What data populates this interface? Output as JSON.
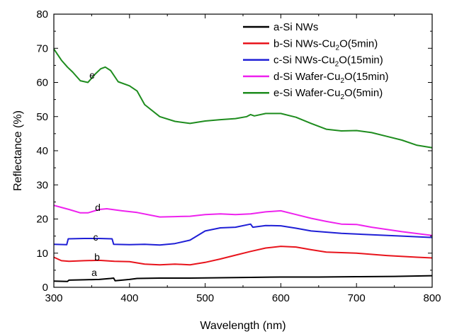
{
  "chart_data": {
    "type": "line",
    "xlabel": "Wavelength (nm)",
    "ylabel": "Reflectance (%)",
    "xlim": [
      300,
      800
    ],
    "ylim": [
      0,
      80
    ],
    "xticks": [
      "300",
      "400",
      "500",
      "600",
      "700",
      "800"
    ],
    "yticks": [
      "0",
      "10",
      "20",
      "30",
      "40",
      "50",
      "60",
      "70",
      "80"
    ],
    "grid": false,
    "legend_position": "top-right",
    "series": [
      {
        "name": "a-Si NWs",
        "legend_pre": "a-Si NWs",
        "legend_sub": "",
        "legend_post": "",
        "label": "a",
        "color": "#000000",
        "points": [
          [
            300,
            1.8
          ],
          [
            318,
            1.7
          ],
          [
            320,
            2.1
          ],
          [
            340,
            2.2
          ],
          [
            360,
            2.3
          ],
          [
            375,
            2.6
          ],
          [
            379,
            2.7
          ],
          [
            381,
            1.9
          ],
          [
            390,
            2.1
          ],
          [
            400,
            2.3
          ],
          [
            410,
            2.6
          ],
          [
            440,
            2.7
          ],
          [
            480,
            2.7
          ],
          [
            520,
            2.8
          ],
          [
            560,
            2.9
          ],
          [
            600,
            3.0
          ],
          [
            650,
            3.0
          ],
          [
            700,
            3.1
          ],
          [
            750,
            3.2
          ],
          [
            800,
            3.4
          ]
        ]
      },
      {
        "name": "b-Si NWs-Cu2O(5min)",
        "legend_pre": "b-Si NWs-Cu",
        "legend_sub": "2",
        "legend_post": "O(5min)",
        "label": "b",
        "color": "#e8141c",
        "points": [
          [
            300,
            8.8
          ],
          [
            310,
            7.8
          ],
          [
            320,
            7.6
          ],
          [
            340,
            7.8
          ],
          [
            360,
            7.9
          ],
          [
            380,
            7.6
          ],
          [
            400,
            7.5
          ],
          [
            420,
            6.8
          ],
          [
            440,
            6.6
          ],
          [
            460,
            6.8
          ],
          [
            480,
            6.6
          ],
          [
            500,
            7.3
          ],
          [
            520,
            8.3
          ],
          [
            540,
            9.4
          ],
          [
            560,
            10.5
          ],
          [
            580,
            11.5
          ],
          [
            600,
            12.0
          ],
          [
            620,
            11.8
          ],
          [
            640,
            11.0
          ],
          [
            660,
            10.3
          ],
          [
            700,
            10.0
          ],
          [
            740,
            9.3
          ],
          [
            780,
            8.8
          ],
          [
            800,
            8.6
          ]
        ]
      },
      {
        "name": "c-Si NWs-Cu2O(15min)",
        "legend_pre": "c-Si NWs-Cu",
        "legend_sub": "2",
        "legend_post": "O(15min)",
        "label": "c",
        "color": "#1f1fd6",
        "points": [
          [
            300,
            12.6
          ],
          [
            317,
            12.5
          ],
          [
            319,
            14.2
          ],
          [
            340,
            14.3
          ],
          [
            360,
            14.3
          ],
          [
            377,
            14.2
          ],
          [
            379,
            12.6
          ],
          [
            400,
            12.5
          ],
          [
            420,
            12.6
          ],
          [
            440,
            12.4
          ],
          [
            460,
            12.8
          ],
          [
            480,
            13.8
          ],
          [
            500,
            16.5
          ],
          [
            520,
            17.4
          ],
          [
            540,
            17.6
          ],
          [
            560,
            18.5
          ],
          [
            563,
            17.6
          ],
          [
            580,
            18.1
          ],
          [
            600,
            18.0
          ],
          [
            620,
            17.3
          ],
          [
            640,
            16.5
          ],
          [
            680,
            15.8
          ],
          [
            720,
            15.4
          ],
          [
            760,
            15.0
          ],
          [
            800,
            14.6
          ]
        ]
      },
      {
        "name": "d-Si Wafer-Cu2O(15min)",
        "legend_pre": "d-Si Wafer-Cu",
        "legend_sub": "2",
        "legend_post": "O(15min)",
        "label": "d",
        "color": "#ee22ee",
        "points": [
          [
            300,
            24.0
          ],
          [
            310,
            23.4
          ],
          [
            320,
            22.8
          ],
          [
            335,
            21.8
          ],
          [
            345,
            21.8
          ],
          [
            360,
            22.8
          ],
          [
            370,
            23.0
          ],
          [
            390,
            22.4
          ],
          [
            410,
            21.9
          ],
          [
            440,
            20.6
          ],
          [
            460,
            20.7
          ],
          [
            480,
            20.8
          ],
          [
            500,
            21.3
          ],
          [
            520,
            21.5
          ],
          [
            540,
            21.3
          ],
          [
            560,
            21.5
          ],
          [
            580,
            22.1
          ],
          [
            600,
            22.4
          ],
          [
            620,
            21.3
          ],
          [
            640,
            20.2
          ],
          [
            660,
            19.3
          ],
          [
            680,
            18.5
          ],
          [
            700,
            18.4
          ],
          [
            720,
            17.6
          ],
          [
            760,
            16.3
          ],
          [
            800,
            15.2
          ]
        ]
      },
      {
        "name": "e-Si Wafer-Cu2O(5min)",
        "legend_pre": "e-Si Wafer-Cu",
        "legend_sub": "2",
        "legend_post": "O(5min)",
        "label": "e",
        "color": "#1e8c1e",
        "points": [
          [
            300,
            69.8
          ],
          [
            310,
            66.5
          ],
          [
            318,
            64.5
          ],
          [
            325,
            63.0
          ],
          [
            335,
            60.5
          ],
          [
            345,
            60.0
          ],
          [
            355,
            62.5
          ],
          [
            362,
            64.0
          ],
          [
            368,
            64.5
          ],
          [
            375,
            63.5
          ],
          [
            385,
            60.2
          ],
          [
            400,
            59.0
          ],
          [
            410,
            57.5
          ],
          [
            420,
            53.5
          ],
          [
            440,
            50.0
          ],
          [
            460,
            48.6
          ],
          [
            480,
            48.0
          ],
          [
            500,
            48.7
          ],
          [
            520,
            49.1
          ],
          [
            540,
            49.4
          ],
          [
            555,
            50.0
          ],
          [
            560,
            50.6
          ],
          [
            565,
            50.2
          ],
          [
            580,
            50.9
          ],
          [
            600,
            50.9
          ],
          [
            620,
            49.8
          ],
          [
            640,
            48.0
          ],
          [
            660,
            46.3
          ],
          [
            680,
            45.8
          ],
          [
            700,
            45.9
          ],
          [
            720,
            45.3
          ],
          [
            740,
            44.2
          ],
          [
            760,
            43.1
          ],
          [
            780,
            41.6
          ],
          [
            800,
            40.9
          ]
        ]
      }
    ]
  }
}
